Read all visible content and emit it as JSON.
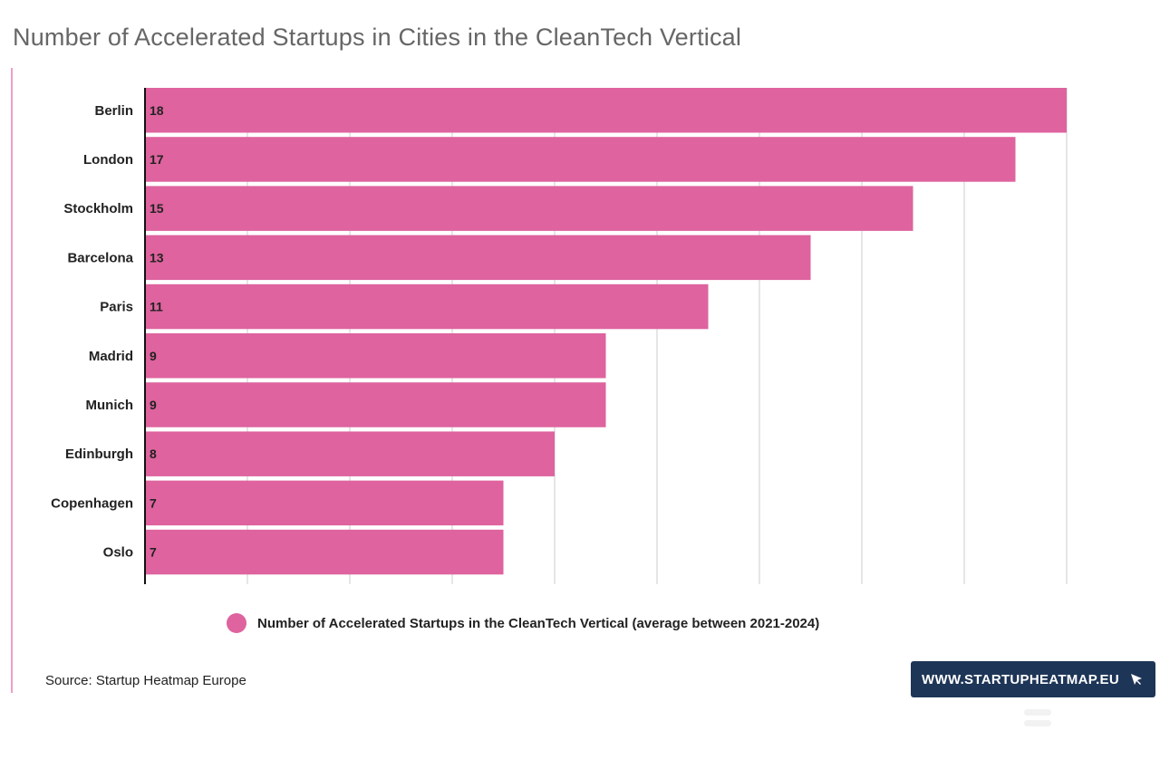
{
  "title": "Number of Accelerated Startups in Cities in the CleanTech Vertical",
  "source": "Source: Startup Heatmap Europe",
  "badge_text": "WWW.STARTUPHEATMAP.EU",
  "colors": {
    "bar": "#de639e",
    "accent": "#ee9fc6",
    "badge_bg": "#1d3557",
    "grid": "#cccccc"
  },
  "chart_data": {
    "type": "bar",
    "orientation": "horizontal",
    "categories": [
      "Berlin",
      "London",
      "Stockholm",
      "Barcelona",
      "Paris",
      "Madrid",
      "Munich",
      "Edinburgh",
      "Copenhagen",
      "Oslo"
    ],
    "series": [
      {
        "name": "Number of Accelerated Startups in the CleanTech Vertical (average between 2021-2024)",
        "values": [
          18,
          17,
          15,
          13,
          11,
          9,
          9,
          8,
          7,
          7
        ]
      }
    ],
    "xlim": [
      0,
      18
    ],
    "grid": true,
    "legend": "bottom",
    "data_labels": true
  }
}
